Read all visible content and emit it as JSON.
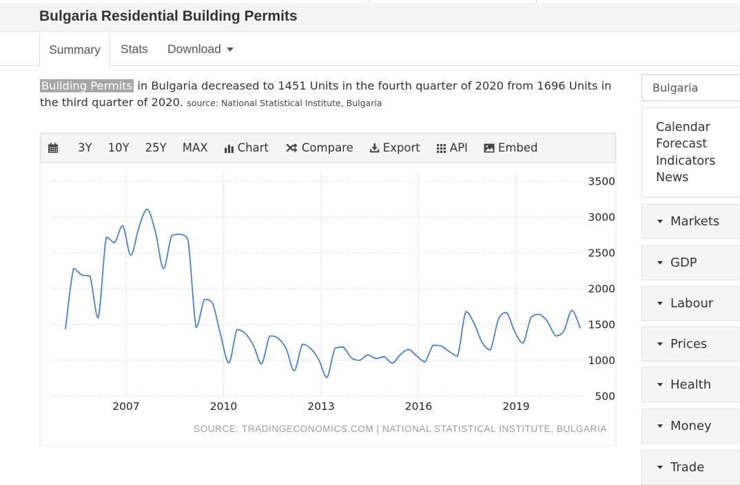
{
  "page": {
    "title": "Bulgaria Residential Building Permits",
    "tabs": {
      "summary": "Summary",
      "stats": "Stats",
      "download": "Download"
    },
    "description": {
      "highlight": "Building Permits",
      "text": " in Bulgaria decreased to 1451 Units in the fourth quarter of 2020 from 1696 Units in the third quarter of 2020. ",
      "source_note": "source: National Statistical Institute, Bulgaria"
    }
  },
  "toolbar": {
    "items": {
      "calendar": "",
      "range_3y": "3Y",
      "range_10y": "10Y",
      "range_25y": "25Y",
      "range_max": "MAX",
      "chart": "Chart",
      "compare": "Compare",
      "export": "Export",
      "api": "API",
      "embed": "Embed"
    }
  },
  "chart_data": {
    "type": "line",
    "title": "Bulgaria Residential Building Permits",
    "frequency": "quarterly",
    "start_period": "2005 Q1",
    "end_period": "2020 Q4",
    "unit": "Units",
    "values": [
      1440,
      2280,
      2190,
      2175,
      1590,
      2720,
      2640,
      2880,
      2465,
      2860,
      3110,
      2800,
      2280,
      2740,
      2760,
      2680,
      1460,
      1850,
      1800,
      1350,
      965,
      1430,
      1375,
      1210,
      950,
      1340,
      1310,
      1165,
      855,
      1225,
      1165,
      1010,
      760,
      1170,
      1185,
      1035,
      1000,
      1075,
      1025,
      1050,
      960,
      1080,
      1150,
      1060,
      980,
      1210,
      1200,
      1120,
      1060,
      1680,
      1520,
      1250,
      1145,
      1570,
      1665,
      1400,
      1240,
      1600,
      1640,
      1540,
      1340,
      1410,
      1696,
      1451
    ],
    "y_ticks": [
      3500,
      3000,
      2500,
      2000,
      1500,
      1000,
      500
    ],
    "x_ticks": [
      2007,
      2010,
      2013,
      2016,
      2019
    ],
    "ylim": [
      471,
      3625
    ],
    "grid": "dotted",
    "line_color": "#4d80be",
    "source_label": "SOURCE: TRADINGECONOMICS.COM | NATIONAL STATISTICAL INSTITUTE, BULGARIA"
  },
  "sidebar": {
    "search_value": "Bulgaria",
    "links": [
      "Calendar",
      "Forecast",
      "Indicators",
      "News"
    ],
    "sections": [
      "Markets",
      "GDP",
      "Labour",
      "Prices",
      "Health",
      "Money",
      "Trade"
    ]
  }
}
